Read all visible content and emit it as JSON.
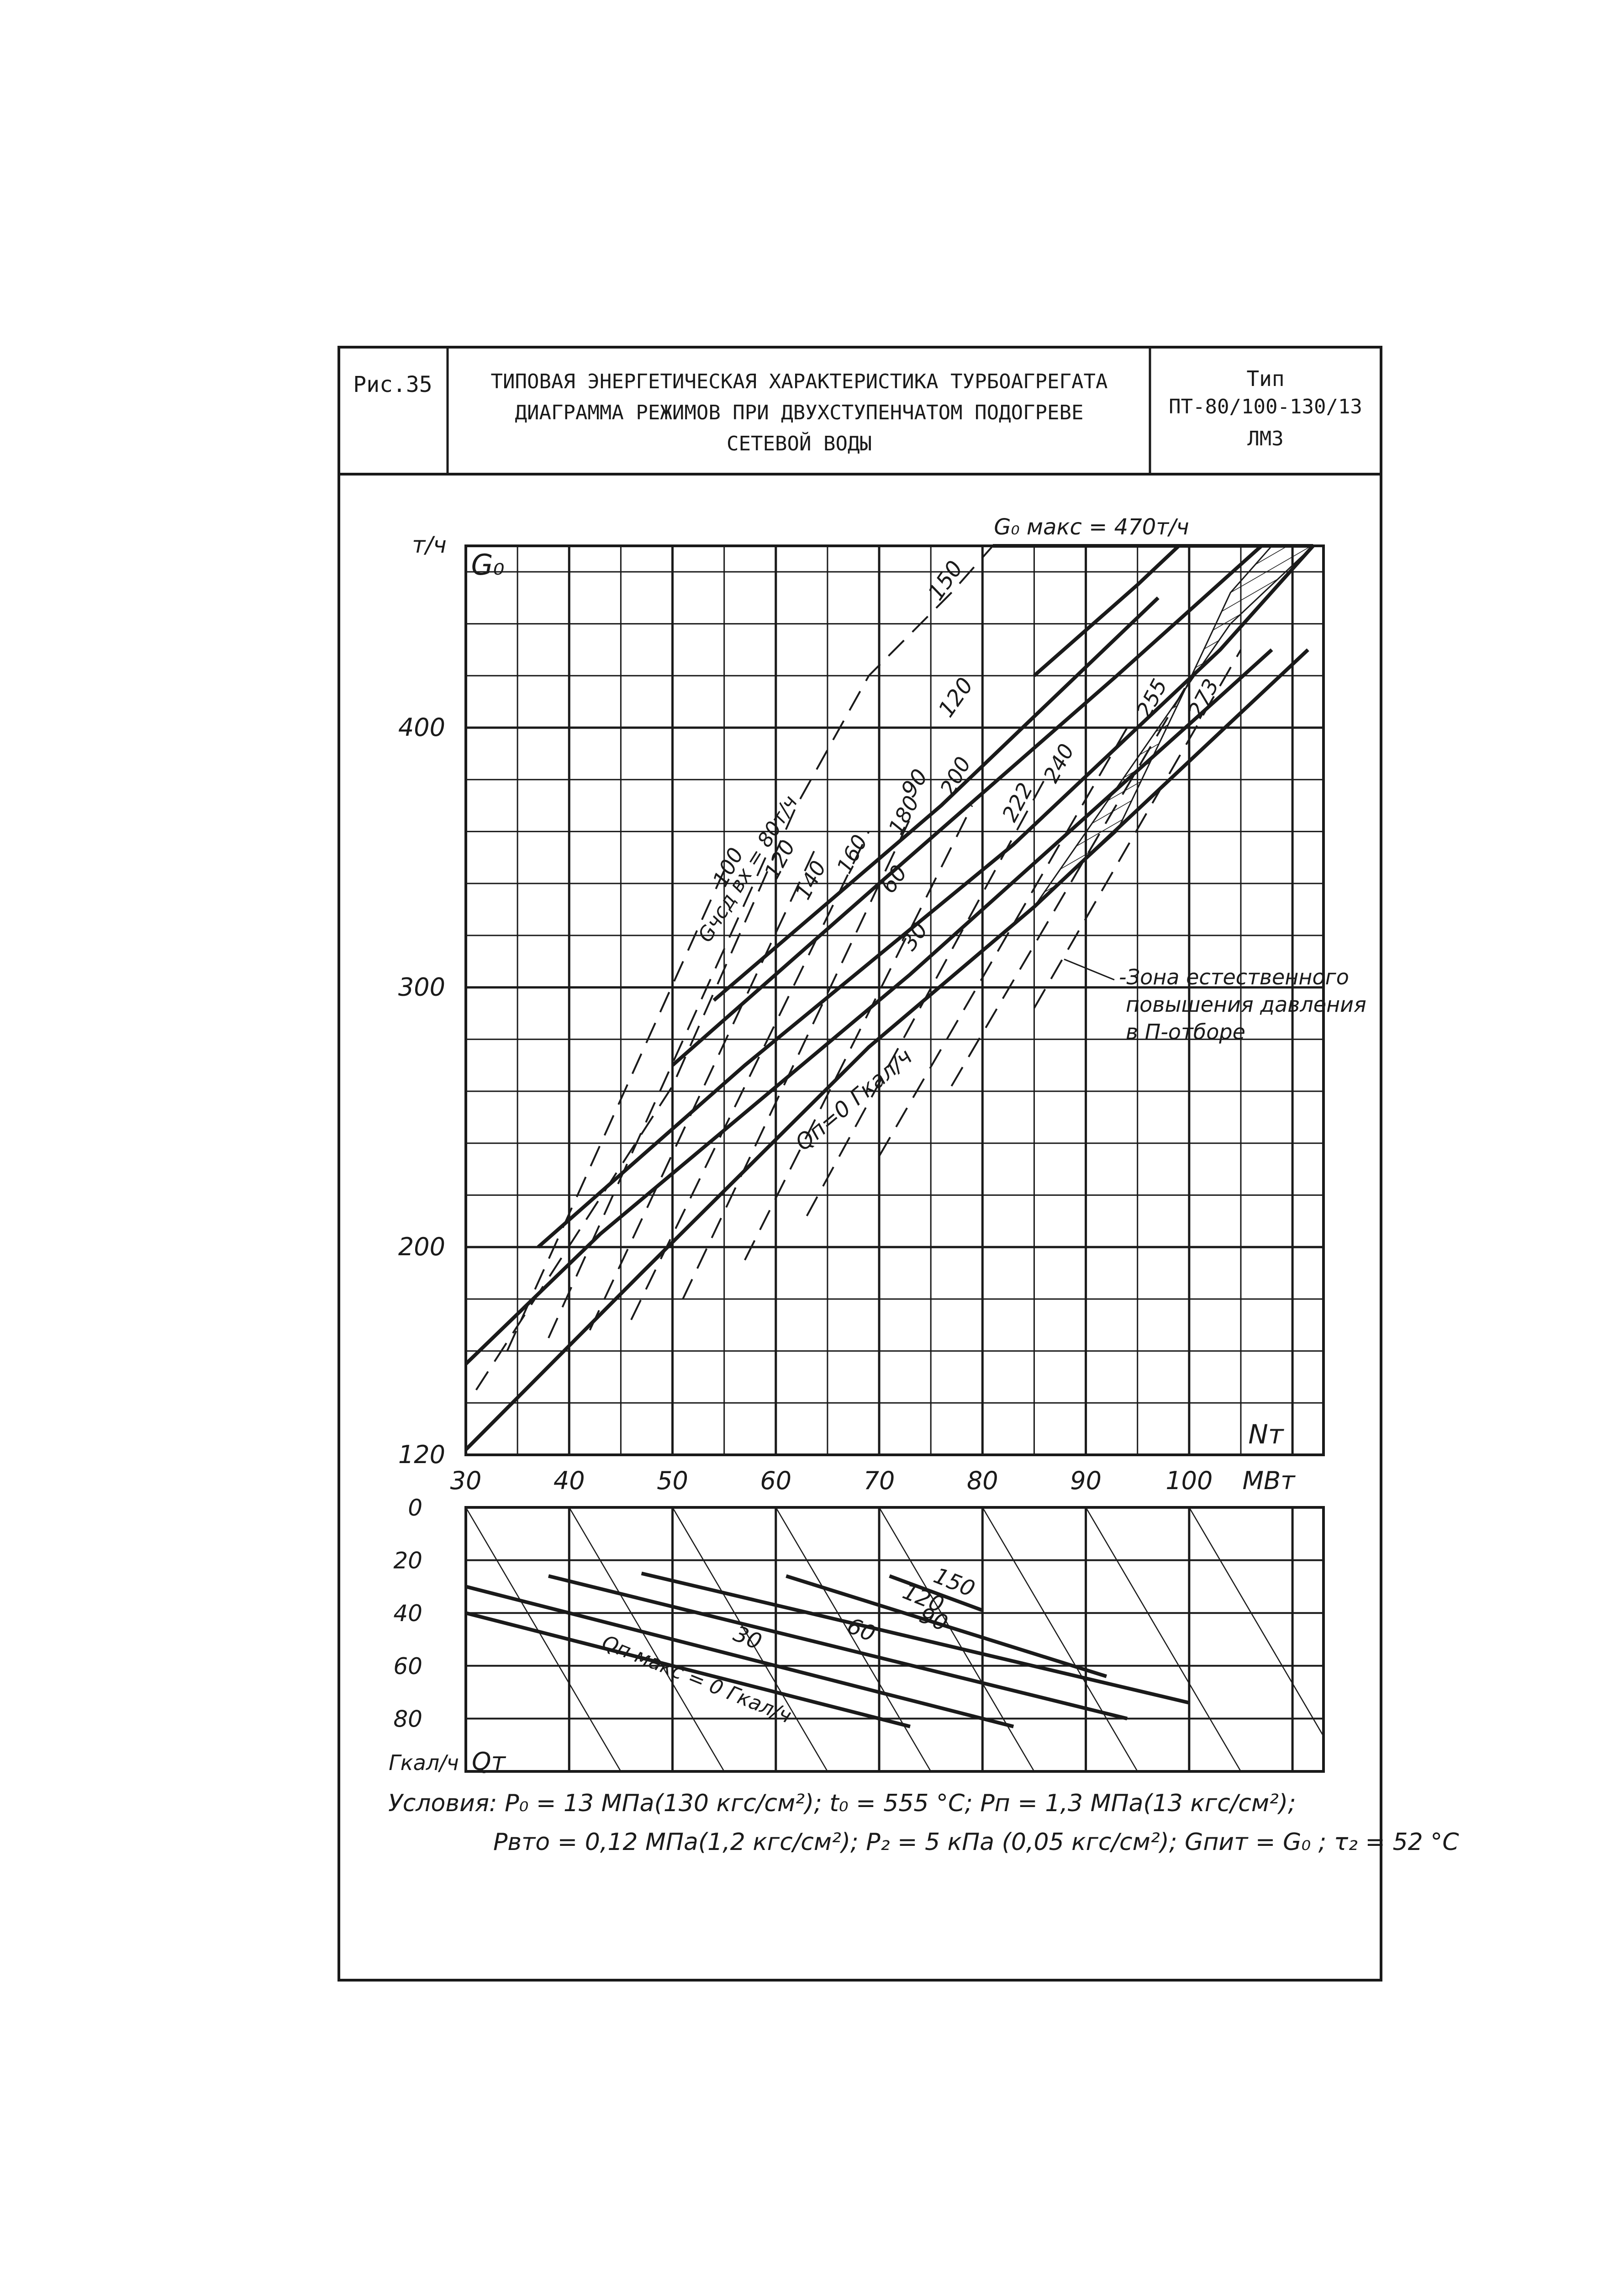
{
  "header": {
    "fig_label": "Рис.35",
    "title_lines": [
      "ТИПОВАЯ ЭНЕРГЕТИЧЕСКАЯ ХАРАКТЕРИСТИКА ТУРБОАГРЕГАТА",
      "ДИАГРАММА РЕЖИМОВ ПРИ ДВУХСТУПЕНЧАТОМ ПОДОГРЕВЕ",
      "СЕТЕВОЙ ВОДЫ"
    ],
    "type_lines": [
      "Тип",
      "ПТ-80/100-130/13",
      "ЛМЗ"
    ]
  },
  "chart_data": [
    {
      "type": "line",
      "title": "",
      "ylabel": "т/ч",
      "ysymbol": "G₀",
      "xsymbol": "Nт",
      "xunit": "МВт",
      "xlim": [
        30,
        113
      ],
      "ylim": [
        120,
        470
      ],
      "x_ticks": [
        "30",
        "40",
        "50",
        "60",
        "70",
        "80",
        "90",
        "100"
      ],
      "y_ticks": [
        "120",
        "200",
        "300",
        "400"
      ],
      "grid": true,
      "max_flow_label": "G₀ макс = 470т/ч",
      "gsd_label": "Gчсд вх = 80т/ч",
      "zone_label": [
        "-Зона естественного",
        "повышения давления",
        "в П-отборе"
      ],
      "qp_label": "Qп=0 Гкал/ч",
      "solid_series": [
        {
          "name": "Qп=0",
          "x": [
            30,
            47,
            69,
            85,
            111.5
          ],
          "y": [
            122,
            190,
            277,
            331,
            430
          ]
        },
        {
          "name": "30",
          "x": [
            30,
            43,
            73,
            103,
            108
          ],
          "y": [
            155,
            205,
            305,
            412,
            430
          ]
        },
        {
          "name": "60",
          "x": [
            37,
            57,
            83,
            103,
            112
          ],
          "y": [
            200,
            270,
            355,
            430,
            470
          ]
        },
        {
          "name": "90",
          "x": [
            50,
            70,
            93,
            107
          ],
          "y": [
            270,
            340,
            420,
            470
          ]
        },
        {
          "name": "120",
          "x": [
            54,
            76,
            97
          ],
          "y": [
            295,
            370,
            450
          ]
        },
        {
          "name": "150",
          "x": [
            85,
            95,
            99
          ],
          "y": [
            420,
            455,
            470
          ]
        }
      ],
      "curve_labels": [
        "30",
        "60",
        "90",
        "120",
        "150"
      ],
      "dashed_labels": [
        "100",
        "120",
        "140",
        "160",
        "180",
        "200",
        "222",
        "240",
        "255",
        "273"
      ],
      "dashed_series": [
        {
          "name": "100",
          "x": [
            34,
            55
          ],
          "y": [
            160,
            345
          ]
        },
        {
          "name": "120",
          "x": [
            38,
            59
          ],
          "y": [
            165,
            350
          ]
        },
        {
          "name": "140",
          "x": [
            42,
            64
          ],
          "y": [
            168,
            355
          ]
        },
        {
          "name": "160",
          "x": [
            46,
            69
          ],
          "y": [
            172,
            360
          ]
        },
        {
          "name": "180",
          "x": [
            51,
            73
          ],
          "y": [
            180,
            365
          ]
        },
        {
          "name": "200",
          "x": [
            57,
            79
          ],
          "y": [
            195,
            370
          ]
        },
        {
          "name": "222",
          "x": [
            63,
            86
          ],
          "y": [
            212,
            380
          ]
        },
        {
          "name": "240",
          "x": [
            70,
            94
          ],
          "y": [
            235,
            400
          ]
        },
        {
          "name": "255",
          "x": [
            77,
            100
          ],
          "y": [
            262,
            418
          ]
        },
        {
          "name": "273",
          "x": [
            85,
            105
          ],
          "y": [
            292,
            430
          ]
        }
      ],
      "upper_dashed_labels": [
        "150",
        "120",
        "90"
      ]
    },
    {
      "type": "line",
      "title": "",
      "ylabel": "Гкал/ч",
      "ysymbol": "Qт",
      "ylim": [
        0,
        100
      ],
      "y_ticks": [
        "0",
        "20",
        "40",
        "60",
        "80"
      ],
      "grid": true,
      "series": [
        {
          "name": "Qп макс = 0 Гкал/ч",
          "x": [
            30,
            73
          ],
          "y": [
            40,
            83
          ]
        },
        {
          "name": "30",
          "x": [
            30,
            83
          ],
          "y": [
            30,
            83
          ]
        },
        {
          "name": "60",
          "x": [
            38,
            94
          ],
          "y": [
            26,
            80
          ]
        },
        {
          "name": "90",
          "x": [
            47,
            100
          ],
          "y": [
            25,
            74
          ]
        },
        {
          "name": "120",
          "x": [
            61,
            92
          ],
          "y": [
            26,
            64
          ]
        },
        {
          "name": "150",
          "x": [
            71,
            80
          ],
          "y": [
            26,
            39
          ]
        }
      ],
      "curve_labels": [
        "30",
        "60",
        "90",
        "120",
        "150"
      ],
      "qmax_label": "Qп макс = 0 Гкал/ч"
    }
  ],
  "conditions": {
    "line1": "Условия: P₀ = 13 МПа(130 кгс/см²);  t₀ = 555 °С;  Pп = 1,3 МПа(13 кгс/см²);",
    "line2": "Pвто = 0,12 МПа(1,2 кгс/см²);  P₂ = 5 кПа (0,05 кгс/см²);  Gпит = G₀ ;  τ₂ = 52 °С"
  }
}
